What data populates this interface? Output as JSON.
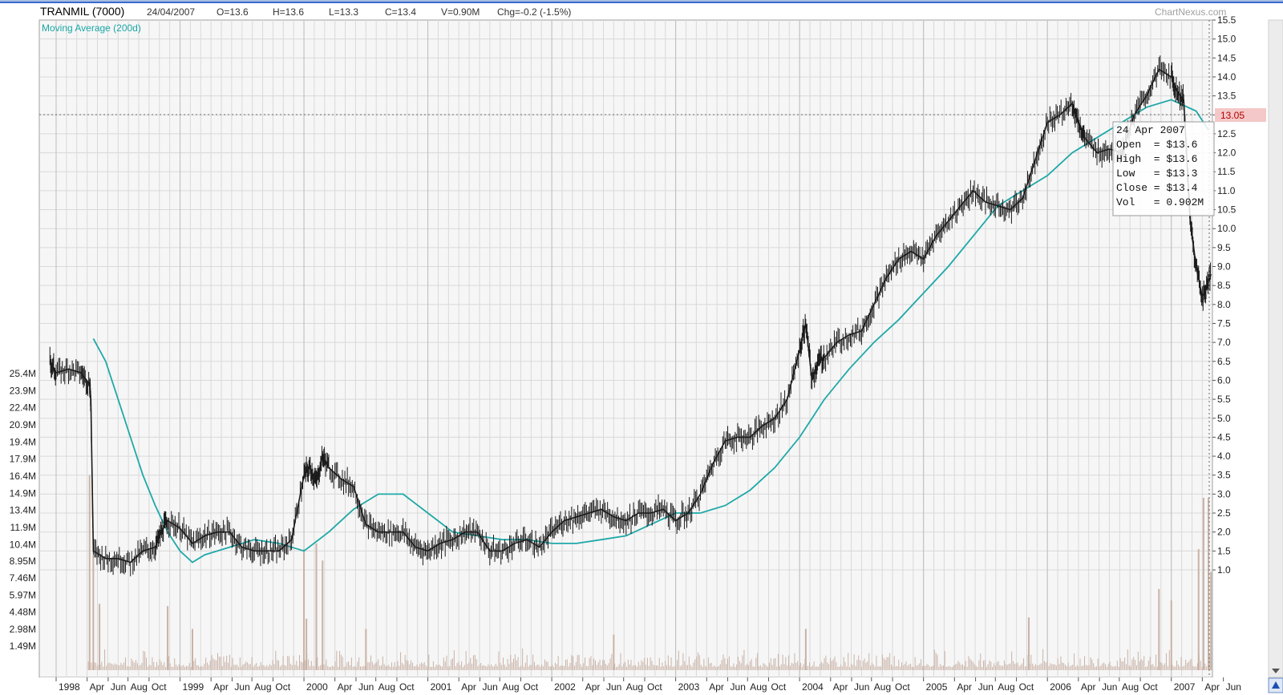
{
  "header": {
    "ticker": "TRANMIL (7000)",
    "date": "24/04/2007",
    "open": "O=13.6",
    "high": "H=13.6",
    "low": "L=13.3",
    "close": "C=13.4",
    "volume": "V=0.90M",
    "change": "Chg=-0.2 (-1.5%)"
  },
  "watermark": "ChartNexus.com",
  "indicator_label": "Moving Average (200d)",
  "current_price_tag": "13.05",
  "tooltip": {
    "date": "24 Apr 2007",
    "open": "Open  = $13.6",
    "high": "High  = $13.6",
    "low": "Low   = $13.3",
    "close": "Close = $13.4",
    "vol": "Vol   = 0.902M"
  },
  "colors": {
    "price": "#1a1a1a",
    "moving_average": "#1fa8a8",
    "volume": "#c9b2a6",
    "grid": "#d9d9d9",
    "background": "#f6f6f6",
    "price_tag_bg": "#f4c8c8"
  },
  "chart_data": {
    "type": "line",
    "title": "TRANMIL (7000)",
    "y_scale_right": {
      "ticks": [
        "15.5",
        "15.0",
        "14.5",
        "14.0",
        "13.5",
        "13.0",
        "12.5",
        "12.0",
        "11.5",
        "11.0",
        "10.5",
        "10.0",
        "9.5",
        "9.0",
        "8.5",
        "8.0",
        "7.5",
        "7.0",
        "6.5",
        "6.0",
        "5.5",
        "5.0",
        "4.5",
        "4.0",
        "3.5",
        "3.0",
        "2.5",
        "2.0",
        "1.5",
        "1.0"
      ],
      "ylim": [
        0.0,
        15.5
      ]
    },
    "y_scale_left_volume": {
      "ticks": [
        "25.4M",
        "23.9M",
        "22.4M",
        "20.9M",
        "19.4M",
        "17.9M",
        "16.4M",
        "14.9M",
        "13.4M",
        "11.9M",
        "10.4M",
        "8.95M",
        "7.46M",
        "5.97M",
        "4.48M",
        "2.98M",
        "1.49M"
      ]
    },
    "x_ticks": [
      {
        "label": "1998",
        "t": 0.0,
        "year": true
      },
      {
        "label": "Apr",
        "t": 0.25
      },
      {
        "label": "Jun",
        "t": 0.42
      },
      {
        "label": "Aug",
        "t": 0.58
      },
      {
        "label": "Oct",
        "t": 0.75
      },
      {
        "label": "1999",
        "t": 1.0,
        "year": true
      },
      {
        "label": "Apr",
        "t": 1.25
      },
      {
        "label": "Jun",
        "t": 1.42
      },
      {
        "label": "Aug",
        "t": 1.58
      },
      {
        "label": "Oct",
        "t": 1.75
      },
      {
        "label": "2000",
        "t": 2.0,
        "year": true
      },
      {
        "label": "Apr",
        "t": 2.25
      },
      {
        "label": "Jun",
        "t": 2.42
      },
      {
        "label": "Aug",
        "t": 2.58
      },
      {
        "label": "Oct",
        "t": 2.75
      },
      {
        "label": "2001",
        "t": 3.0,
        "year": true
      },
      {
        "label": "Apr",
        "t": 3.25
      },
      {
        "label": "Jun",
        "t": 3.42
      },
      {
        "label": "Aug",
        "t": 3.58
      },
      {
        "label": "Oct",
        "t": 3.75
      },
      {
        "label": "2002",
        "t": 4.0,
        "year": true
      },
      {
        "label": "Apr",
        "t": 4.25
      },
      {
        "label": "Jun",
        "t": 4.42
      },
      {
        "label": "Aug",
        "t": 4.58
      },
      {
        "label": "Oct",
        "t": 4.75
      },
      {
        "label": "2003",
        "t": 5.0,
        "year": true
      },
      {
        "label": "Apr",
        "t": 5.25
      },
      {
        "label": "Jun",
        "t": 5.42
      },
      {
        "label": "Aug",
        "t": 5.58
      },
      {
        "label": "Oct",
        "t": 5.75
      },
      {
        "label": "2004",
        "t": 6.0,
        "year": true
      },
      {
        "label": "Apr",
        "t": 6.25
      },
      {
        "label": "Jun",
        "t": 6.42
      },
      {
        "label": "Aug",
        "t": 6.58
      },
      {
        "label": "Oct",
        "t": 6.75
      },
      {
        "label": "2005",
        "t": 7.0,
        "year": true
      },
      {
        "label": "Apr",
        "t": 7.25
      },
      {
        "label": "Jun",
        "t": 7.42
      },
      {
        "label": "Aug",
        "t": 7.58
      },
      {
        "label": "Oct",
        "t": 7.75
      },
      {
        "label": "2006",
        "t": 8.0,
        "year": true
      },
      {
        "label": "Apr",
        "t": 8.25
      },
      {
        "label": "Jun",
        "t": 8.42
      },
      {
        "label": "Aug",
        "t": 8.58
      },
      {
        "label": "Oct",
        "t": 8.75
      },
      {
        "label": "2007",
        "t": 9.0,
        "year": true
      },
      {
        "label": "Apr",
        "t": 9.25
      },
      {
        "label": "Jun",
        "t": 9.42
      }
    ],
    "x_units": "years since Jan 1998",
    "series": [
      {
        "name": "TRANMIL (7000)",
        "x": [
          -0.05,
          0.0,
          0.1,
          0.2,
          0.27,
          0.28,
          0.3,
          0.4,
          0.5,
          0.6,
          0.7,
          0.8,
          0.85,
          0.9,
          1.0,
          1.1,
          1.2,
          1.3,
          1.4,
          1.5,
          1.6,
          1.7,
          1.8,
          1.9,
          2.0,
          2.05,
          2.1,
          2.15,
          2.2,
          2.3,
          2.4,
          2.5,
          2.6,
          2.7,
          2.8,
          2.9,
          3.0,
          3.1,
          3.2,
          3.3,
          3.4,
          3.5,
          3.6,
          3.7,
          3.8,
          3.9,
          4.0,
          4.1,
          4.2,
          4.3,
          4.4,
          4.5,
          4.6,
          4.7,
          4.8,
          4.9,
          5.0,
          5.1,
          5.2,
          5.3,
          5.4,
          5.5,
          5.6,
          5.7,
          5.8,
          5.9,
          6.0,
          6.05,
          6.1,
          6.15,
          6.2,
          6.3,
          6.4,
          6.5,
          6.6,
          6.7,
          6.8,
          6.9,
          7.0,
          7.1,
          7.2,
          7.3,
          7.4,
          7.5,
          7.6,
          7.7,
          7.8,
          7.9,
          8.0,
          8.1,
          8.2,
          8.25,
          8.3,
          8.4,
          8.5,
          8.6,
          8.7,
          8.8,
          8.9,
          9.0,
          9.05,
          9.1,
          9.15,
          9.2,
          9.25,
          9.28,
          9.32
        ],
        "values": [
          6.5,
          6.2,
          6.3,
          6.2,
          5.9,
          5.5,
          1.5,
          1.3,
          1.3,
          1.2,
          1.5,
          1.6,
          2.0,
          2.3,
          2.1,
          1.7,
          1.9,
          2.0,
          2.0,
          1.6,
          1.5,
          1.5,
          1.5,
          1.8,
          3.5,
          3.7,
          3.3,
          4.0,
          3.7,
          3.4,
          3.2,
          2.2,
          2.0,
          2.0,
          2.0,
          1.6,
          1.5,
          1.7,
          1.8,
          2.0,
          2.0,
          1.5,
          1.5,
          1.7,
          1.8,
          1.6,
          2.0,
          2.3,
          2.4,
          2.5,
          2.6,
          2.4,
          2.3,
          2.5,
          2.5,
          2.6,
          2.3,
          2.5,
          3.0,
          3.8,
          4.4,
          4.5,
          4.5,
          4.8,
          5.0,
          5.5,
          6.8,
          7.5,
          6.0,
          6.5,
          6.6,
          7.0,
          7.2,
          7.3,
          8.0,
          8.7,
          9.2,
          9.4,
          9.2,
          9.8,
          10.2,
          10.6,
          11.0,
          10.7,
          10.6,
          10.5,
          10.8,
          11.8,
          12.8,
          13.0,
          13.3,
          12.8,
          12.4,
          12.0,
          12.1,
          12.0,
          13.0,
          13.5,
          14.2,
          14.0,
          13.6,
          13.4,
          10.3,
          9.0,
          8.2,
          8.4,
          8.8
        ],
        "color": "#1a1a1a"
      },
      {
        "name": "Moving Average (200d)",
        "x": [
          0.3,
          0.4,
          0.5,
          0.6,
          0.7,
          0.8,
          0.9,
          1.0,
          1.1,
          1.2,
          1.4,
          1.6,
          1.8,
          2.0,
          2.2,
          2.4,
          2.6,
          2.8,
          3.0,
          3.2,
          3.4,
          3.6,
          3.8,
          4.0,
          4.2,
          4.4,
          4.6,
          4.8,
          5.0,
          5.2,
          5.4,
          5.6,
          5.8,
          6.0,
          6.2,
          6.4,
          6.6,
          6.8,
          7.0,
          7.2,
          7.4,
          7.6,
          7.8,
          8.0,
          8.2,
          8.4,
          8.6,
          8.8,
          9.0,
          9.2,
          9.3
        ],
        "values": [
          7.1,
          6.5,
          5.5,
          4.5,
          3.5,
          2.7,
          2.0,
          1.5,
          1.2,
          1.4,
          1.6,
          1.8,
          1.7,
          1.5,
          2.0,
          2.6,
          3.0,
          3.0,
          2.5,
          2.0,
          1.9,
          1.8,
          1.8,
          1.7,
          1.7,
          1.8,
          1.9,
          2.2,
          2.5,
          2.5,
          2.7,
          3.1,
          3.7,
          4.5,
          5.5,
          6.3,
          7.0,
          7.6,
          8.3,
          9.0,
          9.8,
          10.6,
          11.0,
          11.4,
          12.0,
          12.4,
          12.8,
          13.2,
          13.4,
          13.1,
          12.6
        ],
        "color": "#1fa8a8"
      }
    ],
    "volume_profile": {
      "note": "many thin bars",
      "bars": [
        [
          0.27,
          16.5
        ],
        [
          0.3,
          9.5
        ],
        [
          0.35,
          5.2
        ],
        [
          0.9,
          5.0
        ],
        [
          1.1,
          3.0
        ],
        [
          2.0,
          10.0
        ],
        [
          2.02,
          3.9
        ],
        [
          2.1,
          10.5
        ],
        [
          2.15,
          9.0
        ],
        [
          2.5,
          3.0
        ],
        [
          4.5,
          2.5
        ],
        [
          6.05,
          3.0
        ],
        [
          7.85,
          4.0
        ],
        [
          8.9,
          6.5
        ],
        [
          9.0,
          5.5
        ],
        [
          9.22,
          10.0
        ],
        [
          9.26,
          14.5
        ],
        [
          9.3,
          14.5
        ],
        [
          9.32,
          8.0
        ]
      ]
    },
    "grid": true,
    "legend": "top-left"
  }
}
